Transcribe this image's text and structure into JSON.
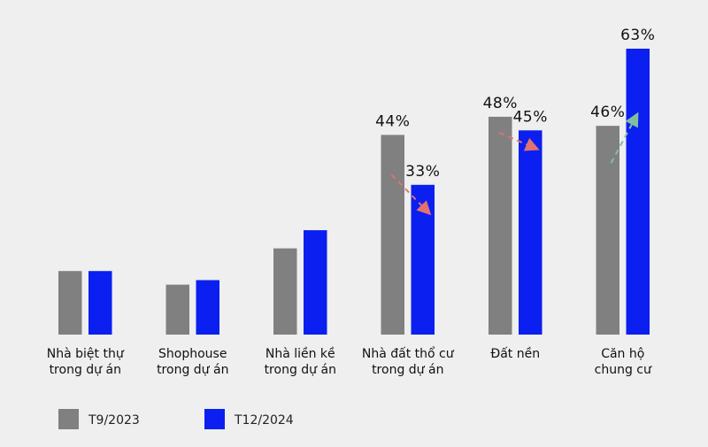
{
  "chart_data": {
    "type": "bar",
    "title": "",
    "xlabel": "",
    "ylabel": "",
    "ylim": [
      0,
      63
    ],
    "grid": false,
    "legend_placement": "bottom-left",
    "categories": [
      [
        "Nhà biệt thự",
        "trong dự án"
      ],
      [
        "Shophouse",
        "trong dự án"
      ],
      [
        "Nhà liền kề",
        "trong dự án"
      ],
      [
        "Nhà đất thổ cư",
        "trong dự án"
      ],
      [
        "Đất nền"
      ],
      [
        "Căn hộ",
        "chung cư"
      ]
    ],
    "series": [
      {
        "name": "T9/2023",
        "color": "#808080",
        "values": [
          14,
          11,
          19,
          44,
          48,
          46
        ],
        "labels": [
          null,
          null,
          null,
          "44%",
          "48%",
          "46%"
        ]
      },
      {
        "name": "T12/2024",
        "color": "#0a1ff0",
        "values": [
          14,
          12,
          23,
          33,
          45,
          63
        ],
        "labels": [
          null,
          null,
          null,
          "33%",
          "45%",
          "63%"
        ]
      }
    ],
    "trend_arrows": [
      {
        "category_index": 3,
        "direction": "down",
        "color": "#e07272"
      },
      {
        "category_index": 4,
        "direction": "down",
        "color": "#e07272"
      },
      {
        "category_index": 5,
        "direction": "up",
        "color": "#80bf9c"
      }
    ]
  }
}
